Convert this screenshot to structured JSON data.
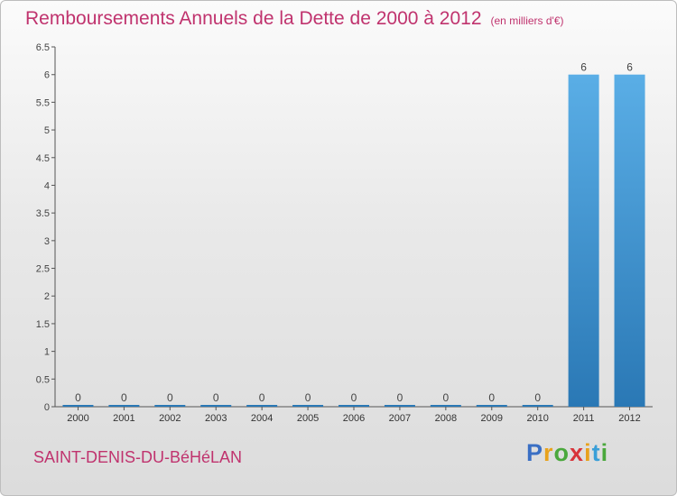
{
  "title": "Remboursements Annuels de la Dette de 2000 à 2012",
  "unit_note": "(en milliers d'€)",
  "commune": "SAINT-DENIS-DU-BéHéLAN",
  "logo": {
    "letters": [
      "P",
      "r",
      "o",
      "x",
      "i",
      "t",
      "i"
    ],
    "colors": [
      "#3a6fc4",
      "#e8a21c",
      "#4aa83c",
      "#d8343a",
      "#e8a21c",
      "#3a9fd8",
      "#4aa83c"
    ]
  },
  "colors": {
    "bar_top": "#5aaee6",
    "bar_bottom": "#2a78b5",
    "title": "#c0336e",
    "axis": "#555555"
  },
  "chart_data": {
    "type": "bar",
    "title": "Remboursements Annuels de la Dette de 2000 à 2012",
    "xlabel": "",
    "ylabel": "en milliers d'€",
    "categories": [
      "2000",
      "2001",
      "2002",
      "2003",
      "2004",
      "2005",
      "2006",
      "2007",
      "2008",
      "2009",
      "2010",
      "2011",
      "2012"
    ],
    "values": [
      0,
      0,
      0,
      0,
      0,
      0,
      0,
      0,
      0,
      0,
      0,
      6,
      6
    ],
    "data_labels": [
      "0",
      "0",
      "0",
      "0",
      "0",
      "0",
      "0",
      "0",
      "0",
      "0",
      "0",
      "6",
      "6"
    ],
    "y_ticks": [
      "0",
      "0.5",
      "1",
      "1.5",
      "2",
      "2.5",
      "3",
      "3.5",
      "4",
      "4.5",
      "5",
      "5.5",
      "6",
      "6.5"
    ],
    "ylim": [
      0,
      6.5
    ],
    "grid": false
  }
}
